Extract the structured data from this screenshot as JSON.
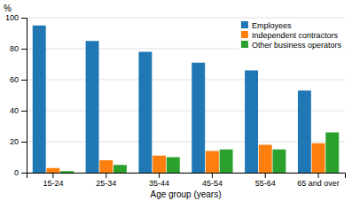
{
  "chart_data": {
    "type": "bar",
    "categories": [
      "15-24",
      "25-34",
      "35-44",
      "45-54",
      "55-64",
      "65 and over"
    ],
    "series": [
      {
        "name": "Employees",
        "values": [
          95,
          85,
          78,
          71,
          66,
          53
        ]
      },
      {
        "name": "Independent contractors",
        "values": [
          3,
          8,
          11,
          14,
          18,
          19
        ]
      },
      {
        "name": "Other business operators",
        "values": [
          1,
          5,
          10,
          15,
          15,
          26
        ]
      }
    ],
    "xlabel": "Age group (years)",
    "ylabel": "%",
    "ylim": [
      0,
      100
    ],
    "yticks": [
      0,
      20,
      40,
      60,
      80,
      100
    ],
    "grid": true,
    "legend": "upper right"
  }
}
